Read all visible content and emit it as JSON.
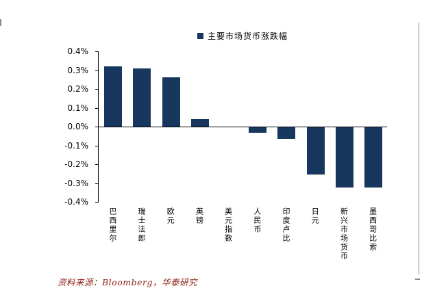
{
  "chart_data": {
    "type": "bar",
    "legend": "主要市场货币涨跌幅",
    "categories": [
      "巴西里尔",
      "瑞士法郎",
      "欧元",
      "英镑",
      "美元指数",
      "人民币",
      "印度卢比",
      "日元",
      "新兴市场货币",
      "墨西哥比索"
    ],
    "values": [
      0.32,
      0.31,
      0.26,
      0.04,
      0.0,
      -0.03,
      -0.06,
      -0.25,
      -0.32,
      -0.32
    ],
    "unit": "%",
    "ylim": [
      -0.4,
      0.4
    ],
    "ytick_step": 0.1,
    "ytick_labels": [
      "0.4%",
      "0.3%",
      "0.2%",
      "0.1%",
      "0.0%",
      "-0.1%",
      "-0.2%",
      "-0.3%",
      "-0.4%"
    ],
    "legend_position": "top",
    "grid": false
  },
  "colors": {
    "bar": "#17375e",
    "axis": "#000000",
    "footer_text": "#8e2217"
  },
  "footer": {
    "source_text": "资料来源：Bloomberg，华泰研究"
  }
}
